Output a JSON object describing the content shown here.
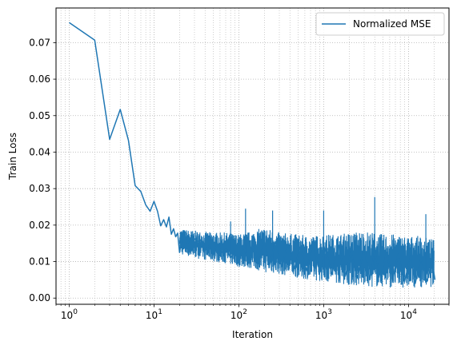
{
  "chart_data": {
    "type": "line",
    "title": "",
    "xlabel": "Iteration",
    "ylabel": "Train Loss",
    "x_scale": "log",
    "xlim": [
      0.7,
      30000
    ],
    "ylim": [
      -0.0017,
      0.0795
    ],
    "grid": true,
    "legend_position": "top-right",
    "x_ticks": [
      {
        "value": 1,
        "base": "10",
        "exp": "0"
      },
      {
        "value": 10,
        "base": "10",
        "exp": "1"
      },
      {
        "value": 100,
        "base": "10",
        "exp": "2"
      },
      {
        "value": 1000,
        "base": "10",
        "exp": "3"
      },
      {
        "value": 10000,
        "base": "10",
        "exp": "4"
      }
    ],
    "y_ticks": [
      {
        "value": 0.0,
        "label": "0.00"
      },
      {
        "value": 0.01,
        "label": "0.01"
      },
      {
        "value": 0.02,
        "label": "0.02"
      },
      {
        "value": 0.03,
        "label": "0.03"
      },
      {
        "value": 0.04,
        "label": "0.04"
      },
      {
        "value": 0.05,
        "label": "0.05"
      },
      {
        "value": 0.06,
        "label": "0.06"
      },
      {
        "value": 0.07,
        "label": "0.07"
      }
    ],
    "series": [
      {
        "name": "Normalized MSE",
        "color": "#1f77b4",
        "x": [
          1,
          2,
          3,
          4,
          5,
          6,
          7,
          8,
          9,
          10,
          11,
          12,
          13,
          14,
          15,
          16,
          17,
          18,
          19,
          20,
          22,
          25,
          28,
          32,
          36,
          40,
          45,
          50,
          56,
          63,
          70,
          80,
          90,
          100,
          115,
          130,
          150,
          170,
          200,
          230,
          270,
          320,
          380,
          450,
          530,
          630,
          750,
          900,
          1050,
          1250,
          1500,
          1800,
          2100,
          2500,
          3000,
          3500,
          4000,
          4700,
          5500,
          6500,
          7500,
          9000,
          10500,
          12000,
          14000,
          16500,
          19000,
          20500
        ],
        "y": [
          0.0755,
          0.0707,
          0.0435,
          0.0517,
          0.0432,
          0.0308,
          0.0292,
          0.0255,
          0.0238,
          0.0265,
          0.0238,
          0.0198,
          0.0215,
          0.0195,
          0.0222,
          0.0175,
          0.019,
          0.0168,
          0.0178,
          0.0125,
          0.0182,
          0.015,
          0.017,
          0.0155,
          0.0158,
          0.013,
          0.0145,
          0.012,
          0.015,
          0.0125,
          0.014,
          0.011,
          0.013,
          0.0105,
          0.014,
          0.01,
          0.015,
          0.0095,
          0.016,
          0.009,
          0.0155,
          0.0085,
          0.015,
          0.008,
          0.014,
          0.0075,
          0.015,
          0.007,
          0.0135,
          0.0065,
          0.0145,
          0.006,
          0.013,
          0.0055,
          0.014,
          0.005,
          0.013,
          0.0055,
          0.0125,
          0.005,
          0.012,
          0.0045,
          0.0115,
          0.004,
          0.011,
          0.0045,
          0.01,
          0.005
        ],
        "band": {
          "x": [
            20,
            30,
            50,
            70,
            100,
            150,
            200,
            300,
            500,
            700,
            1000,
            1500,
            2000,
            3000,
            5000,
            7000,
            10000,
            14000,
            20000
          ],
          "low": [
            0.012,
            0.011,
            0.01,
            0.0095,
            0.0085,
            0.008,
            0.007,
            0.0065,
            0.0055,
            0.005,
            0.0045,
            0.004,
            0.0035,
            0.003,
            0.003,
            0.0028,
            0.0028,
            0.003,
            0.003
          ],
          "high": [
            0.019,
            0.0185,
            0.018,
            0.018,
            0.0175,
            0.0185,
            0.0195,
            0.018,
            0.0175,
            0.017,
            0.0175,
            0.0175,
            0.018,
            0.0185,
            0.0175,
            0.0175,
            0.017,
            0.017,
            0.016
          ]
        },
        "spikes": [
          {
            "x": 80,
            "y": 0.021
          },
          {
            "x": 120,
            "y": 0.0245
          },
          {
            "x": 250,
            "y": 0.024
          },
          {
            "x": 1000,
            "y": 0.024
          },
          {
            "x": 4000,
            "y": 0.0277
          },
          {
            "x": 16000,
            "y": 0.023
          }
        ]
      }
    ]
  }
}
